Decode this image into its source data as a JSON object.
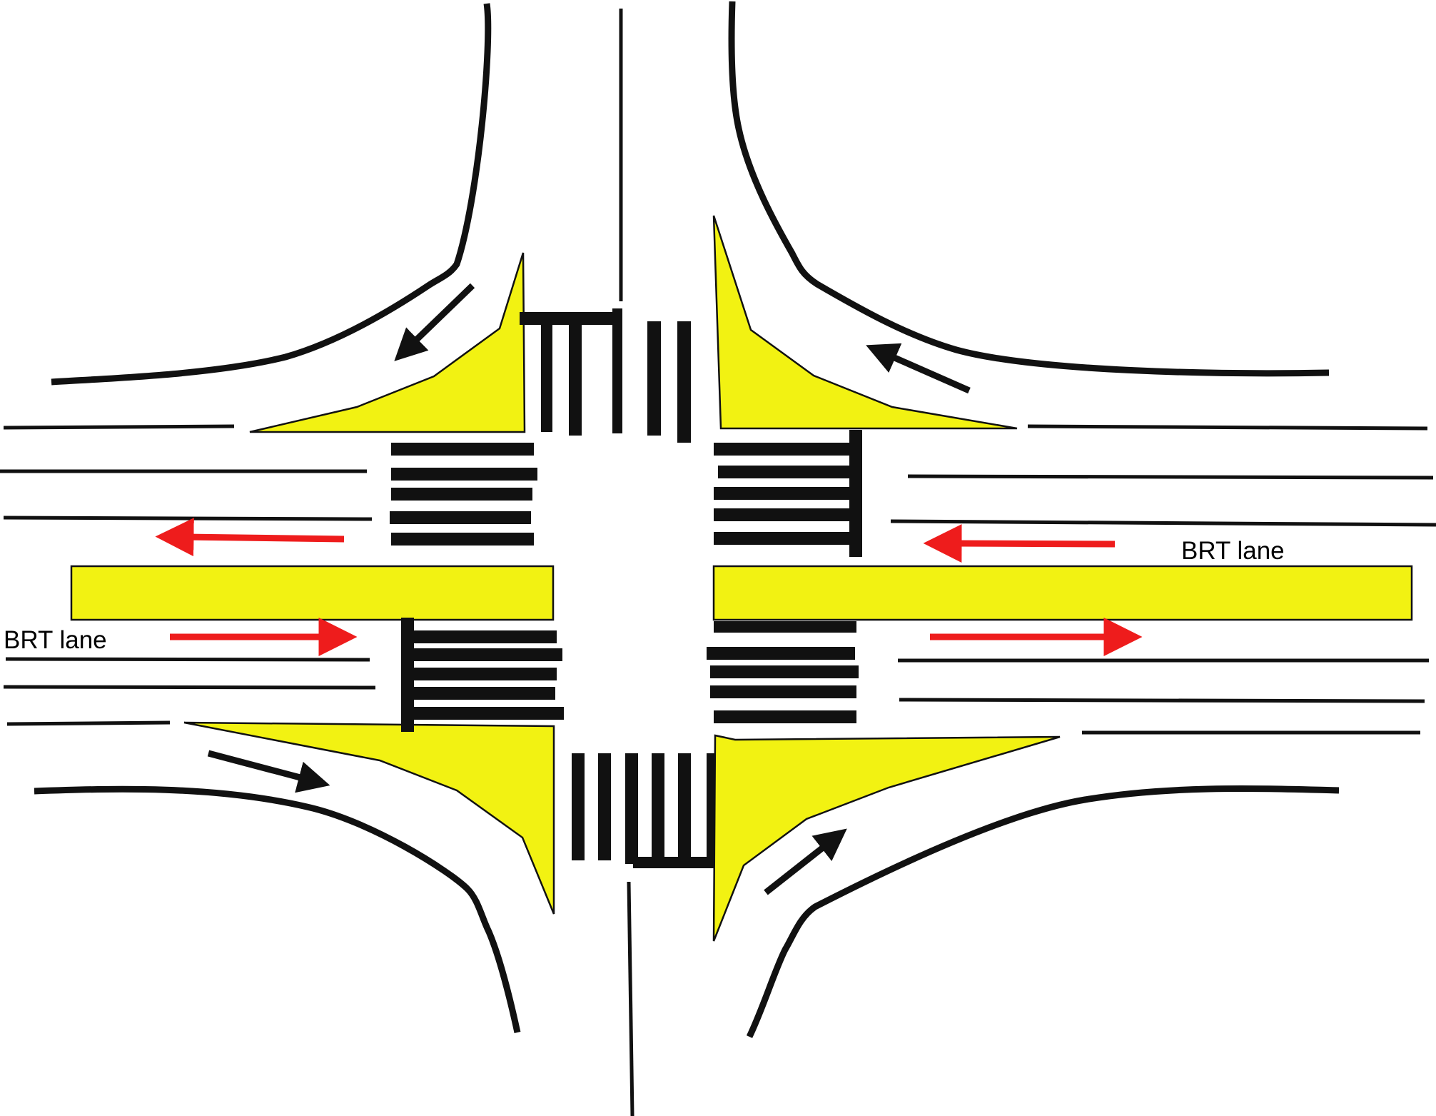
{
  "labels": {
    "brt_lane_east": "BRT lane",
    "brt_lane_west": "BRT lane"
  },
  "colors": {
    "island_fill": "#f2f212",
    "road_line": "#111111",
    "brt_arrow": "#ee1c1c",
    "turn_arrow": "#111111"
  }
}
